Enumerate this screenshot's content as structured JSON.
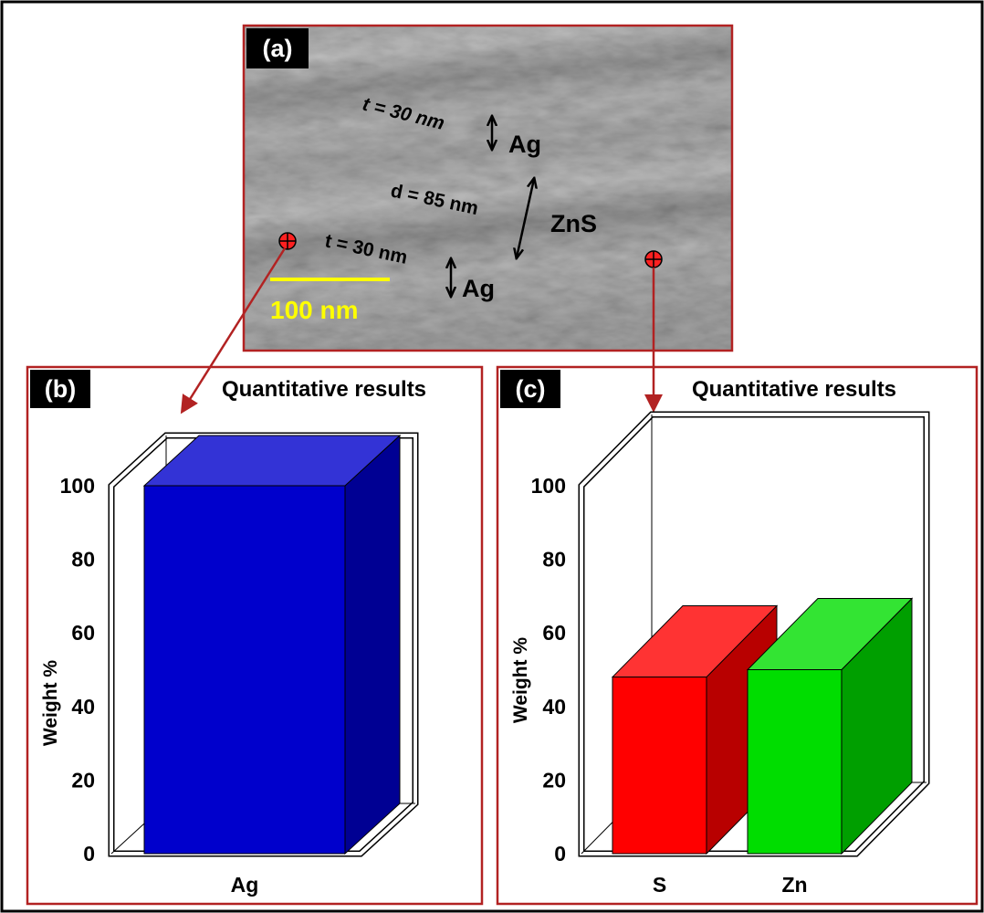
{
  "panel_a": {
    "label": "(a)",
    "annotations": {
      "t_top": "t = 30 nm",
      "ag_top": "Ag",
      "d": "d = 85 nm",
      "zns": "ZnS",
      "t_bottom": "t = 30 nm",
      "ag_bottom": "Ag"
    },
    "scale_bar": "100 nm"
  },
  "colors": {
    "frame": "#b22222",
    "ag_bar": "#0000cc",
    "s_bar": "#ff0000",
    "zn_bar": "#00dd00",
    "scale_bar": "#ffff00"
  },
  "chart_data": [
    {
      "panel": "(b)",
      "type": "bar",
      "title": "Quantitative results",
      "ylabel": "Weight %",
      "xlabel": "",
      "categories": [
        "Ag"
      ],
      "values": [
        100
      ],
      "ylim": [
        0,
        100
      ],
      "yticks": [
        "0",
        "20",
        "40",
        "60",
        "80",
        "100"
      ],
      "grid": false
    },
    {
      "panel": "(c)",
      "type": "bar",
      "title": "Quantitative results",
      "ylabel": "Weight %",
      "xlabel": "",
      "categories": [
        "S",
        "Zn"
      ],
      "values": [
        48,
        50
      ],
      "ylim": [
        0,
        100
      ],
      "yticks": [
        "0",
        "20",
        "40",
        "60",
        "80",
        "100"
      ],
      "grid": false
    }
  ]
}
